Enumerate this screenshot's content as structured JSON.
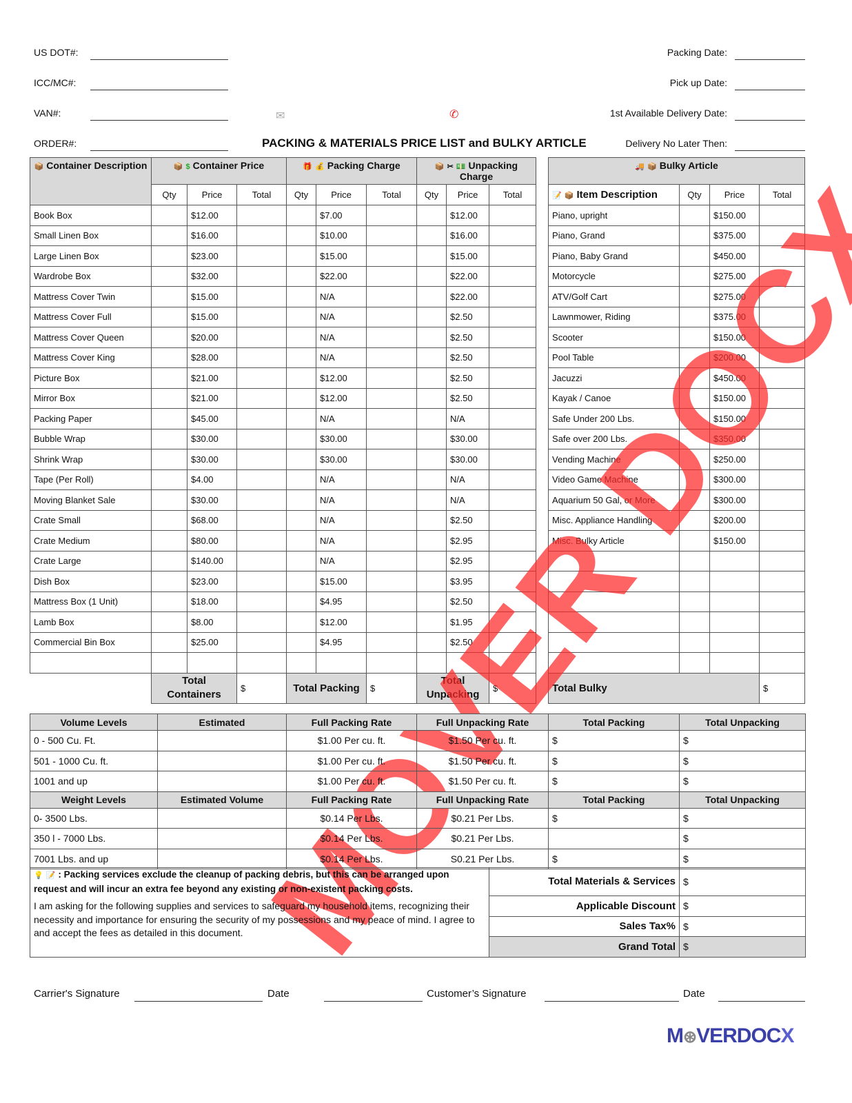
{
  "header": {
    "left": [
      {
        "label": "US DOT#:"
      },
      {
        "label": "ICC/MC#:"
      },
      {
        "label": "VAN#:"
      },
      {
        "label": "ORDER#:"
      }
    ],
    "right": [
      {
        "label": "Packing Date:"
      },
      {
        "label": "Pick up Date:"
      },
      {
        "label": "1st Available Delivery Date:"
      },
      {
        "label": "Delivery No Later Then:"
      }
    ],
    "title": "PACKING & MATERIALS PRICE LIST and BULKY ARTICLE"
  },
  "main": {
    "headers": {
      "container_desc": "Container Description",
      "container_price": "Container Price",
      "packing": "Packing Charge",
      "unpacking": "Unpacking Charge",
      "bulky": "Bulky Article",
      "item_desc": "Item Description",
      "qty": "Qty",
      "price": "Price",
      "total": "Total"
    },
    "containers": [
      [
        "Book Box",
        "$12.00",
        "$7.00",
        "$12.00"
      ],
      [
        "Small Linen Box",
        "$16.00",
        "$10.00",
        "$16.00"
      ],
      [
        "Large Linen Box",
        "$23.00",
        "$15.00",
        "$15.00"
      ],
      [
        "Wardrobe Box",
        "$32.00",
        "$22.00",
        "$22.00"
      ],
      [
        "Mattress Cover Twin",
        "$15.00",
        "N/A",
        "$22.00"
      ],
      [
        "Mattress Cover Full",
        "$15.00",
        "N/A",
        "$2.50"
      ],
      [
        "Mattress Cover Queen",
        "$20.00",
        "N/A",
        "$2.50"
      ],
      [
        "Mattress Cover King",
        "$28.00",
        "N/A",
        "$2.50"
      ],
      [
        "Picture Box",
        "$21.00",
        "$12.00",
        "$2.50"
      ],
      [
        "Mirror Box",
        "$21.00",
        "$12.00",
        "$2.50"
      ],
      [
        "Packing Paper",
        "$45.00",
        "N/A",
        "N/A"
      ],
      [
        "Bubble Wrap",
        "$30.00",
        "$30.00",
        "$30.00"
      ],
      [
        "Shrink Wrap",
        "$30.00",
        "$30.00",
        "$30.00"
      ],
      [
        "Tape (Per Roll)",
        "$4.00",
        "N/A",
        "N/A"
      ],
      [
        "Moving Blanket Sale",
        "$30.00",
        "N/A",
        "N/A"
      ],
      [
        "Crate Small",
        "$68.00",
        "N/A",
        "$2.50"
      ],
      [
        "Crate Medium",
        "$80.00",
        "N/A",
        "$2.95"
      ],
      [
        "Crate Large",
        "$140.00",
        "N/A",
        "$2.95"
      ],
      [
        "Dish Box",
        "$23.00",
        "$15.00",
        "$3.95"
      ],
      [
        "Mattress Box (1 Unit)",
        "$18.00",
        "$4.95",
        "$2.50"
      ],
      [
        "Lamb Box",
        "$8.00",
        "$12.00",
        "$1.95"
      ],
      [
        "Commercial Bin Box",
        "$25.00",
        "$4.95",
        "$2.50"
      ]
    ],
    "bulky": [
      [
        "Piano, upright",
        "$150.00"
      ],
      [
        "Piano, Grand",
        "$375.00"
      ],
      [
        "Piano, Baby Grand",
        "$450.00"
      ],
      [
        "Motorcycle",
        "$275.00"
      ],
      [
        "ATV/Golf Cart",
        "$275.00"
      ],
      [
        "Lawnmower, Riding",
        "$375.00"
      ],
      [
        "Scooter",
        "$150.00"
      ],
      [
        "Pool Table",
        "$200.00"
      ],
      [
        "Jacuzzi",
        "$450.00"
      ],
      [
        "Kayak / Canoe",
        "$150.00"
      ],
      [
        "Safe Under 200 Lbs.",
        "$150.00"
      ],
      [
        "Safe over 200 Lbs.",
        "$350.00"
      ],
      [
        "Vending Machine",
        "$250.00"
      ],
      [
        "Video Game Machine",
        "$300.00"
      ],
      [
        "Aquarium 50 Gal, or More",
        "$300.00"
      ],
      [
        "Misc. Appliance Handling",
        "$200.00"
      ],
      [
        "Misc. Bulky Article",
        "$150.00"
      ]
    ],
    "totals": {
      "containers": "Total Containers",
      "packing": "Total Packing",
      "unpacking": "Total Unpacking",
      "bulky": "Total Bulky",
      "currency": "$"
    }
  },
  "rates": {
    "volume_headers": [
      "Volume Levels",
      "Estimated",
      "Full Packing Rate",
      "Full Unpacking Rate",
      "Total Packing",
      "Total Unpacking"
    ],
    "volume_rows": [
      [
        "0 - 500 Cu. Ft.",
        "",
        "$1.00 Per cu. ft.",
        "$1.50 Per cu. ft.",
        "$",
        "$"
      ],
      [
        "501 - 1000 Cu.  ft.",
        "",
        "$1.00 Per cu. ft.",
        "$1.50 Per cu. ft.",
        "$",
        "$"
      ],
      [
        "1001 and up",
        "",
        "$1.00 Per cu. ft.",
        "$1.50 Per cu. ft.",
        "$",
        "$"
      ]
    ],
    "weight_headers": [
      "Weight Levels",
      "Estimated Volume",
      "Full Packing Rate",
      "Full Unpacking Rate",
      "Total Packing",
      "Total Unpacking"
    ],
    "weight_rows": [
      [
        "0- 3500 Lbs.",
        "",
        "$0.14 Per Lbs.",
        "$0.21 Per Lbs.",
        "$",
        "$"
      ],
      [
        "350 l - 7000 Lbs.",
        "",
        "$0.14 Per Lbs.",
        "$0.21 Per Lbs.",
        "",
        "$"
      ],
      [
        "7001 Lbs. and up",
        "",
        "$0.14 Per Lbs.",
        "S0.21 Per Lbs.",
        "$",
        "$"
      ]
    ]
  },
  "summary": {
    "note": ": Packing services exclude the cleanup of packing debris, but this can be arranged upon request and will incur an extra fee beyond any existing or non-existent packing costs.",
    "agreement": "I am asking for the following supplies and services to safeguard my household items, recognizing their necessity and importance for ensuring the security of my possessions and my peace of mind. I agree to and accept the fees as detailed in this document.",
    "rows": [
      {
        "label": "Total Materials & Services",
        "value": "$"
      },
      {
        "label": "Applicable Discount",
        "value": "$"
      },
      {
        "label": "Sales Tax%",
        "value": "$"
      },
      {
        "label": "Grand Total",
        "value": "$"
      }
    ]
  },
  "signatures": {
    "carrier": "Carrier's Signature",
    "date1": "Date",
    "customer": "Customer’s Signature",
    "date2": "Date"
  },
  "watermark": "MOVER DOCX",
  "logo": "MOVERDOCX",
  "colors": {
    "header_grey": "#d9d9d9",
    "watermark": "#ff2828",
    "logo": "#3b3fa8"
  }
}
